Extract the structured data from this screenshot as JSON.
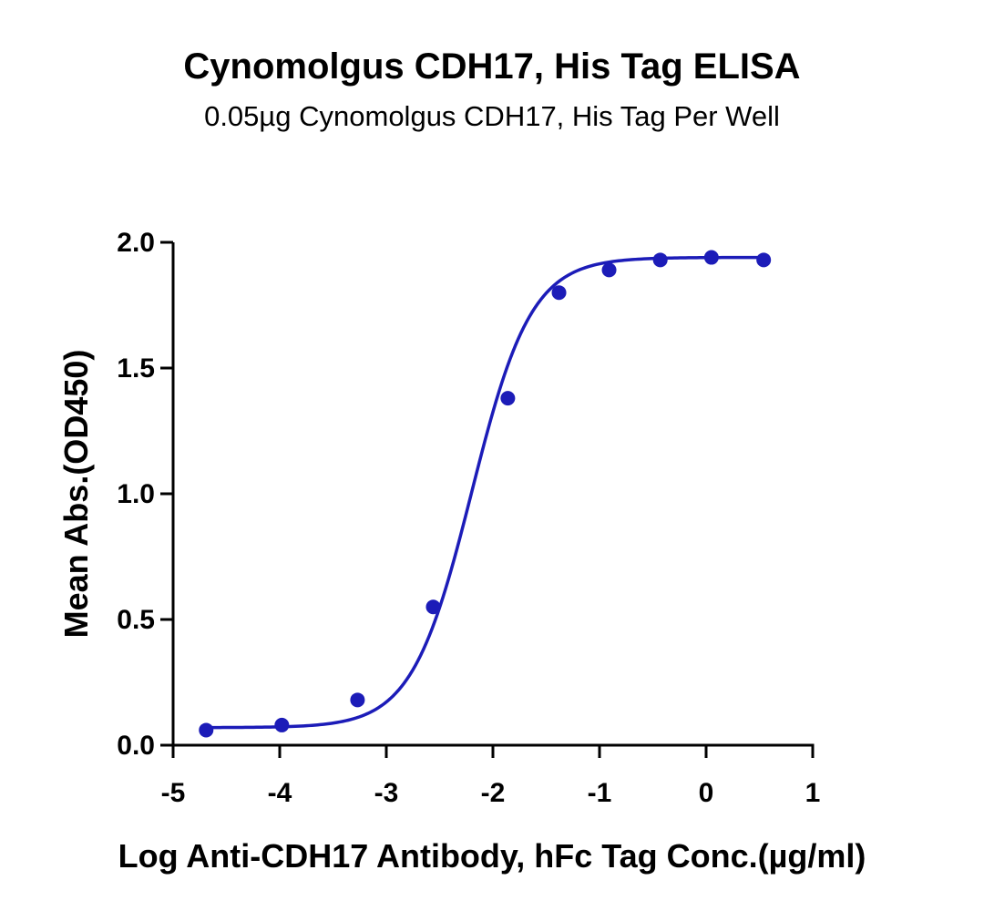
{
  "chart_data": {
    "type": "scatter",
    "title": "Cynomolgus CDH17, His Tag ELISA",
    "subtitle": "0.05µg Cynomolgus CDH17, His Tag Per Well",
    "xlabel": "Log Anti-CDH17 Antibody, hFc Tag Conc.(µg/ml)",
    "ylabel": "Mean Abs.(OD450)",
    "xlim": [
      -5,
      1
    ],
    "ylim": [
      0,
      2
    ],
    "xticks": [
      -5,
      -4,
      -3,
      -2,
      -1,
      0,
      1
    ],
    "yticks": [
      0,
      0.5,
      1,
      1.5,
      2
    ],
    "xtick_labels": [
      "-5",
      "-4",
      "-3",
      "-2",
      "-1",
      "0",
      "1"
    ],
    "ytick_labels": [
      "0.0",
      "0.5",
      "1.0",
      "1.5",
      "2.0"
    ],
    "series": [
      {
        "x": [
          -4.69,
          -3.98,
          -3.27,
          -2.56,
          -1.86,
          -1.38,
          -0.91,
          -0.43,
          0.05,
          0.54
        ],
        "y": [
          0.06,
          0.08,
          0.18,
          0.55,
          1.38,
          1.8,
          1.89,
          1.93,
          1.94,
          1.93
        ],
        "color": "#1c1cb8"
      }
    ],
    "fit": {
      "model": "4PL",
      "bottom": 0.07,
      "top": 1.94,
      "logEC50": -2.2,
      "hill": 1.55,
      "color": "#1c1cb8"
    },
    "grid": false,
    "legend": "none"
  }
}
